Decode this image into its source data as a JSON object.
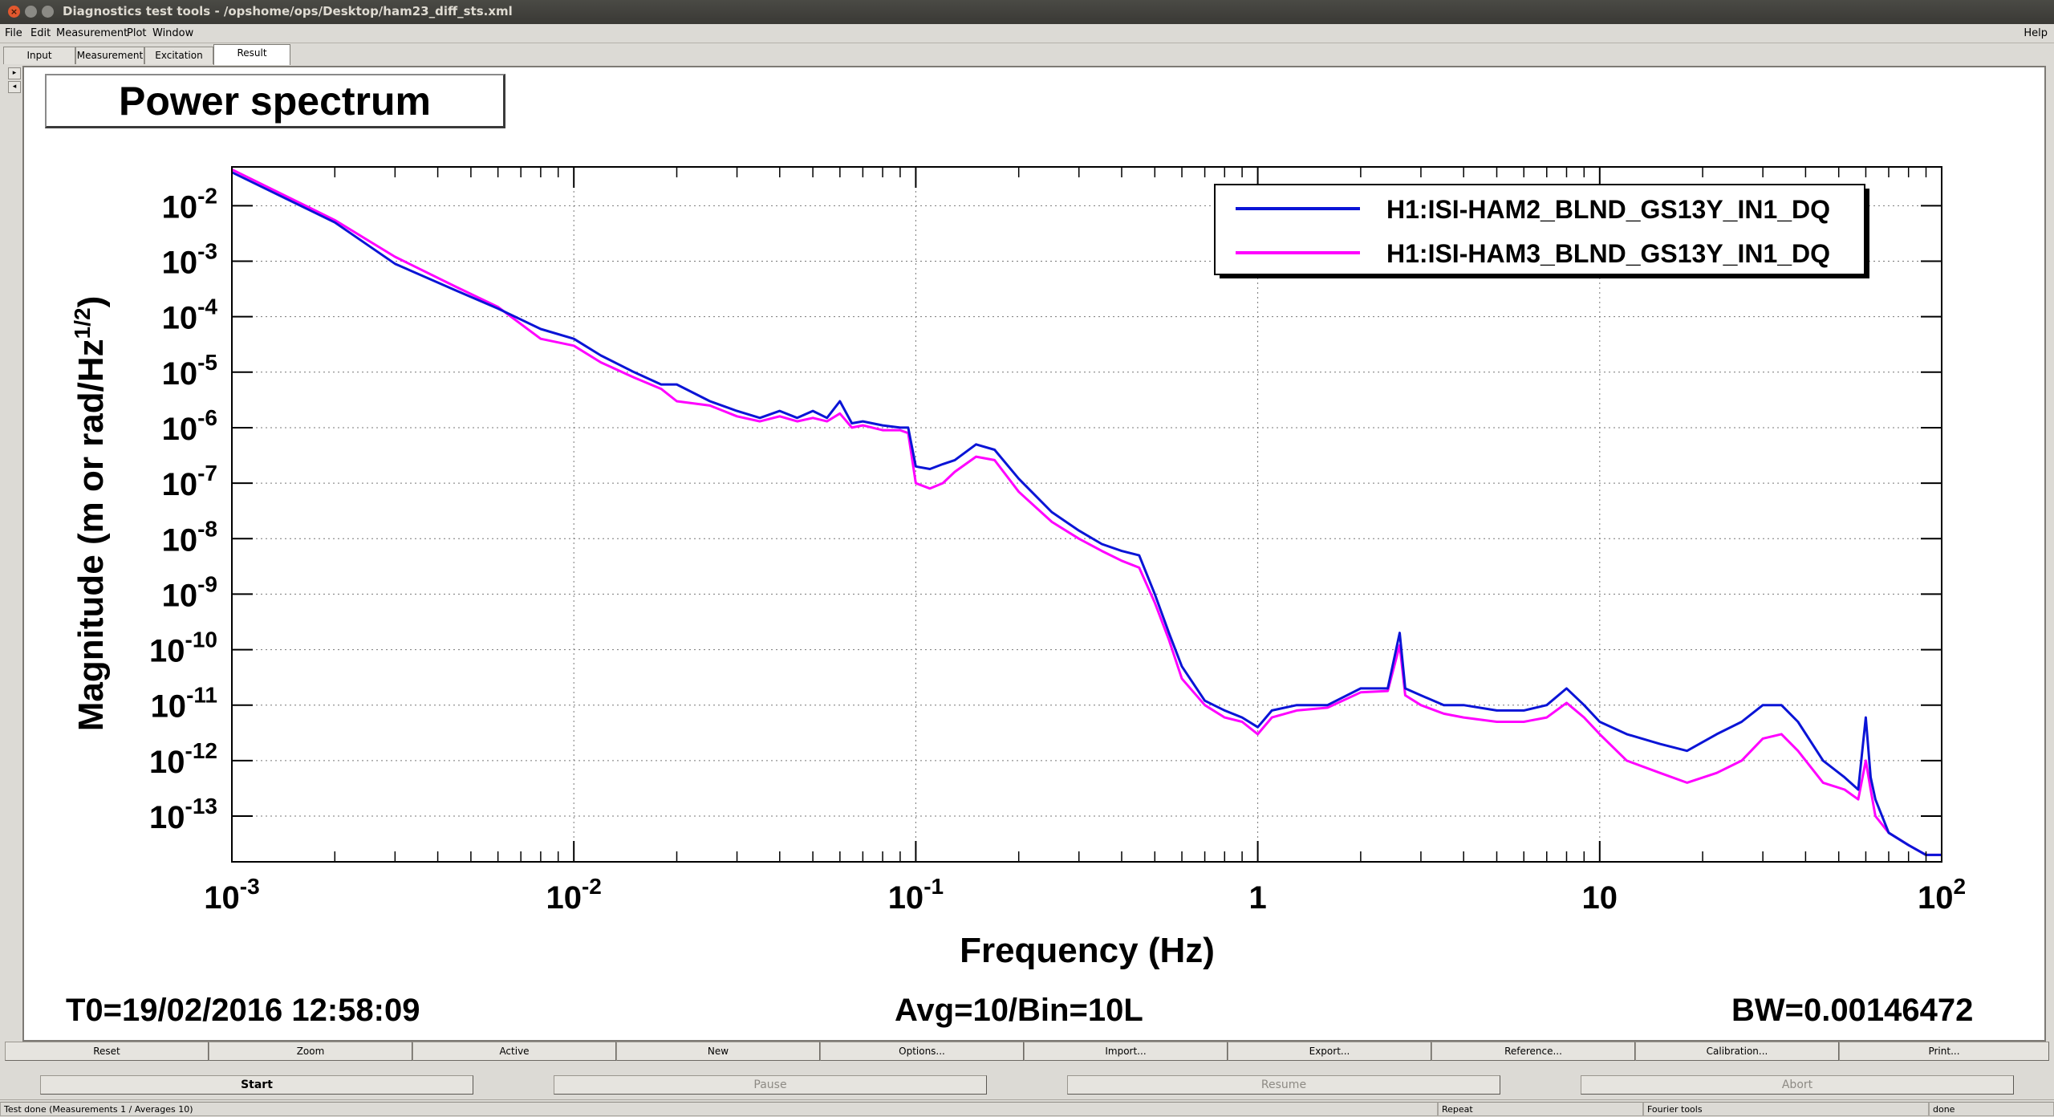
{
  "window": {
    "title": "Diagnostics test tools - /opshome/ops/Desktop/ham23_diff_sts.xml",
    "close_glyph": "×"
  },
  "menu": {
    "items": [
      "File",
      "Edit",
      "Measurement",
      "Plot",
      "Window"
    ],
    "help": "Help"
  },
  "tabs": [
    "Input",
    "Measurement",
    "Excitation",
    "Result"
  ],
  "active_tab": "Result",
  "scroll": {
    "up": "▸",
    "down": "◂"
  },
  "plot": {
    "title": "Power spectrum",
    "info_left": "T0=19/02/2016 12:58:09",
    "info_center": "Avg=10/Bin=10L",
    "info_right": "BW=0.00146472"
  },
  "chart_data": {
    "type": "line",
    "xlabel": "Frequency (Hz)",
    "ylabel": "Magnitude (m or rad/Hz^(1/2))",
    "ylabel_main": "Magnitude (m or rad/Hz",
    "ylabel_sup": "1/2",
    "ylabel_close": ")",
    "x_scale": "log",
    "y_scale": "log",
    "xlim": [
      0.001,
      100
    ],
    "ylim": [
      1.5e-14,
      0.05
    ],
    "grid": true,
    "legend_position": "top-right",
    "x_ticks": [
      {
        "base": "10",
        "exp": "-3",
        "value": 0.001
      },
      {
        "base": "10",
        "exp": "-2",
        "value": 0.01
      },
      {
        "base": "10",
        "exp": "-1",
        "value": 0.1
      },
      {
        "base": "1",
        "exp": "",
        "value": 1
      },
      {
        "base": "10",
        "exp": "",
        "value": 10
      },
      {
        "base": "10",
        "exp": "2",
        "value": 100
      }
    ],
    "y_ticks": [
      {
        "base": "10",
        "exp": "-2",
        "value": 0.01
      },
      {
        "base": "10",
        "exp": "-3",
        "value": 0.001
      },
      {
        "base": "10",
        "exp": "-4",
        "value": 0.0001
      },
      {
        "base": "10",
        "exp": "-5",
        "value": 1e-05
      },
      {
        "base": "10",
        "exp": "-6",
        "value": 1e-06
      },
      {
        "base": "10",
        "exp": "-7",
        "value": 1e-07
      },
      {
        "base": "10",
        "exp": "-8",
        "value": 1e-08
      },
      {
        "base": "10",
        "exp": "-9",
        "value": 1e-09
      },
      {
        "base": "10",
        "exp": "-10",
        "value": 1e-10
      },
      {
        "base": "10",
        "exp": "-11",
        "value": 1e-11
      },
      {
        "base": "10",
        "exp": "-12",
        "value": 1e-12
      },
      {
        "base": "10",
        "exp": "-13",
        "value": 1e-13
      }
    ],
    "series": [
      {
        "name": "H1:ISI-HAM2_BLND_GS13Y_IN1_DQ",
        "color": "#0a14d6",
        "x": [
          0.001,
          0.002,
          0.003,
          0.0045,
          0.006,
          0.008,
          0.01,
          0.012,
          0.015,
          0.018,
          0.02,
          0.025,
          0.03,
          0.035,
          0.04,
          0.045,
          0.05,
          0.055,
          0.06,
          0.065,
          0.07,
          0.08,
          0.09,
          0.095,
          0.1,
          0.11,
          0.12,
          0.13,
          0.15,
          0.17,
          0.2,
          0.25,
          0.3,
          0.35,
          0.4,
          0.45,
          0.5,
          0.55,
          0.6,
          0.7,
          0.8,
          0.9,
          1.0,
          1.1,
          1.3,
          1.6,
          2.0,
          2.4,
          2.6,
          2.7,
          3.0,
          3.5,
          4.0,
          5.0,
          6.0,
          7.0,
          8.0,
          9.0,
          10.0,
          12.0,
          15.0,
          18.0,
          22.0,
          26.0,
          30.0,
          34.0,
          38.0,
          45.0,
          52.0,
          57.0,
          60.0,
          62.0,
          64.0,
          70.0,
          80.0,
          90.0,
          100.0
        ],
        "values": [
          0.04,
          0.005,
          0.0009,
          0.0003,
          0.00014,
          6e-05,
          4e-05,
          2e-05,
          1e-05,
          6e-06,
          6e-06,
          3e-06,
          2e-06,
          1.5e-06,
          2e-06,
          1.5e-06,
          2e-06,
          1.5e-06,
          3e-06,
          1.2e-06,
          1.3e-06,
          1.1e-06,
          1e-06,
          1e-06,
          2e-07,
          1.8e-07,
          2.2e-07,
          2.6e-07,
          5e-07,
          4e-07,
          1.2e-07,
          3e-08,
          1.4e-08,
          8e-09,
          6e-09,
          5e-09,
          1e-09,
          2e-10,
          5e-11,
          1.2e-11,
          8e-12,
          6e-12,
          4e-12,
          8e-12,
          1e-11,
          1e-11,
          2e-11,
          2e-11,
          2e-10,
          2e-11,
          1.5e-11,
          1e-11,
          1e-11,
          8e-12,
          8e-12,
          1e-11,
          2e-11,
          1e-11,
          5e-12,
          3e-12,
          2e-12,
          1.5e-12,
          3e-12,
          5e-12,
          1e-11,
          1e-11,
          5e-12,
          1e-12,
          5e-13,
          3e-13,
          6e-12,
          5e-13,
          2e-13,
          5e-14,
          3e-14,
          2e-14,
          2e-14
        ]
      },
      {
        "name": "H1:ISI-HAM3_BLND_GS13Y_IN1_DQ",
        "color": "#ff00ff",
        "x": [
          0.001,
          0.002,
          0.003,
          0.0045,
          0.006,
          0.008,
          0.01,
          0.012,
          0.015,
          0.018,
          0.02,
          0.025,
          0.03,
          0.035,
          0.04,
          0.045,
          0.05,
          0.055,
          0.06,
          0.065,
          0.07,
          0.08,
          0.09,
          0.095,
          0.1,
          0.11,
          0.12,
          0.13,
          0.15,
          0.17,
          0.2,
          0.25,
          0.3,
          0.35,
          0.4,
          0.45,
          0.5,
          0.55,
          0.6,
          0.7,
          0.8,
          0.9,
          1.0,
          1.1,
          1.3,
          1.6,
          2.0,
          2.4,
          2.6,
          2.7,
          3.0,
          3.5,
          4.0,
          5.0,
          6.0,
          7.0,
          8.0,
          9.0,
          10.0,
          12.0,
          15.0,
          18.0,
          22.0,
          26.0,
          30.0,
          34.0,
          38.0,
          45.0,
          52.0,
          57.0,
          60.0,
          62.0,
          64.0,
          70.0,
          80.0,
          90.0,
          100.0
        ],
        "values": [
          0.045,
          0.0055,
          0.0012,
          0.00035,
          0.00015,
          4e-05,
          3e-05,
          1.5e-05,
          8e-06,
          5e-06,
          3e-06,
          2.5e-06,
          1.6e-06,
          1.3e-06,
          1.6e-06,
          1.3e-06,
          1.5e-06,
          1.3e-06,
          1.8e-06,
          1e-06,
          1.1e-06,
          9e-07,
          9e-07,
          8e-07,
          1e-07,
          8e-08,
          1e-07,
          1.6e-07,
          3e-07,
          2.6e-07,
          7e-08,
          2e-08,
          1e-08,
          6e-09,
          4e-09,
          3e-09,
          7e-10,
          1.5e-10,
          3e-11,
          1e-11,
          6e-12,
          5e-12,
          3e-12,
          6e-12,
          8e-12,
          9e-12,
          1.7e-11,
          1.8e-11,
          1.2e-10,
          1.5e-11,
          1e-11,
          7e-12,
          6e-12,
          5e-12,
          5e-12,
          6e-12,
          1.1e-11,
          6e-12,
          3e-12,
          1e-12,
          6e-13,
          4e-13,
          6e-13,
          1e-12,
          2.5e-12,
          3e-12,
          1.5e-12,
          4e-13,
          3e-13,
          2e-13,
          1e-12,
          3e-13,
          1e-13,
          5e-14,
          3e-14,
          2e-14,
          2e-14
        ]
      }
    ]
  },
  "bottom_buttons": [
    "Reset",
    "Zoom",
    "Active",
    "New",
    "Options...",
    "Import...",
    "Export...",
    "Reference...",
    "Calibration...",
    "Print..."
  ],
  "control_buttons": [
    {
      "label": "Start",
      "enabled": true
    },
    {
      "label": "Pause",
      "enabled": false
    },
    {
      "label": "Resume",
      "enabled": false
    },
    {
      "label": "Abort",
      "enabled": false
    }
  ],
  "status": {
    "message": "Test done (Measurements 1 / Averages 10)",
    "repeat": "Repeat",
    "tool": "Fourier tools",
    "state": "done"
  }
}
